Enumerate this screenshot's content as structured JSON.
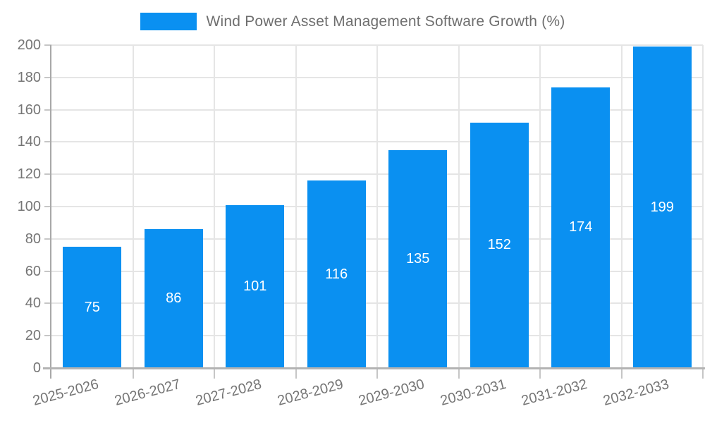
{
  "legend": {
    "label": "Wind Power Asset Management Software Growth (%)"
  },
  "colors": {
    "bar": "#0a90f1",
    "grid": "#e5e5e5",
    "tick": "#c6c6c6",
    "axis_y": "#a8a8a8",
    "axis_x": "#b3b3b3",
    "text": "#757575",
    "value_label": "#ffffff",
    "background": "#ffffff"
  },
  "chart_data": {
    "type": "bar",
    "title": "Wind Power Asset Management Software Growth (%)",
    "categories": [
      "2025-2026",
      "2026-2027",
      "2027-2028",
      "2028-2029",
      "2029-2030",
      "2030-2031",
      "2031-2032",
      "2032-2033"
    ],
    "values": [
      75,
      86,
      101,
      116,
      135,
      152,
      174,
      199
    ],
    "yticks": [
      0,
      20,
      40,
      60,
      80,
      100,
      120,
      140,
      160,
      180,
      200
    ],
    "ylim": [
      0,
      200
    ],
    "xlabel": "",
    "ylabel": "",
    "grid": true,
    "bar_labels_inside": true,
    "legend_position": "top-center",
    "x_label_rotation_deg": -15
  }
}
